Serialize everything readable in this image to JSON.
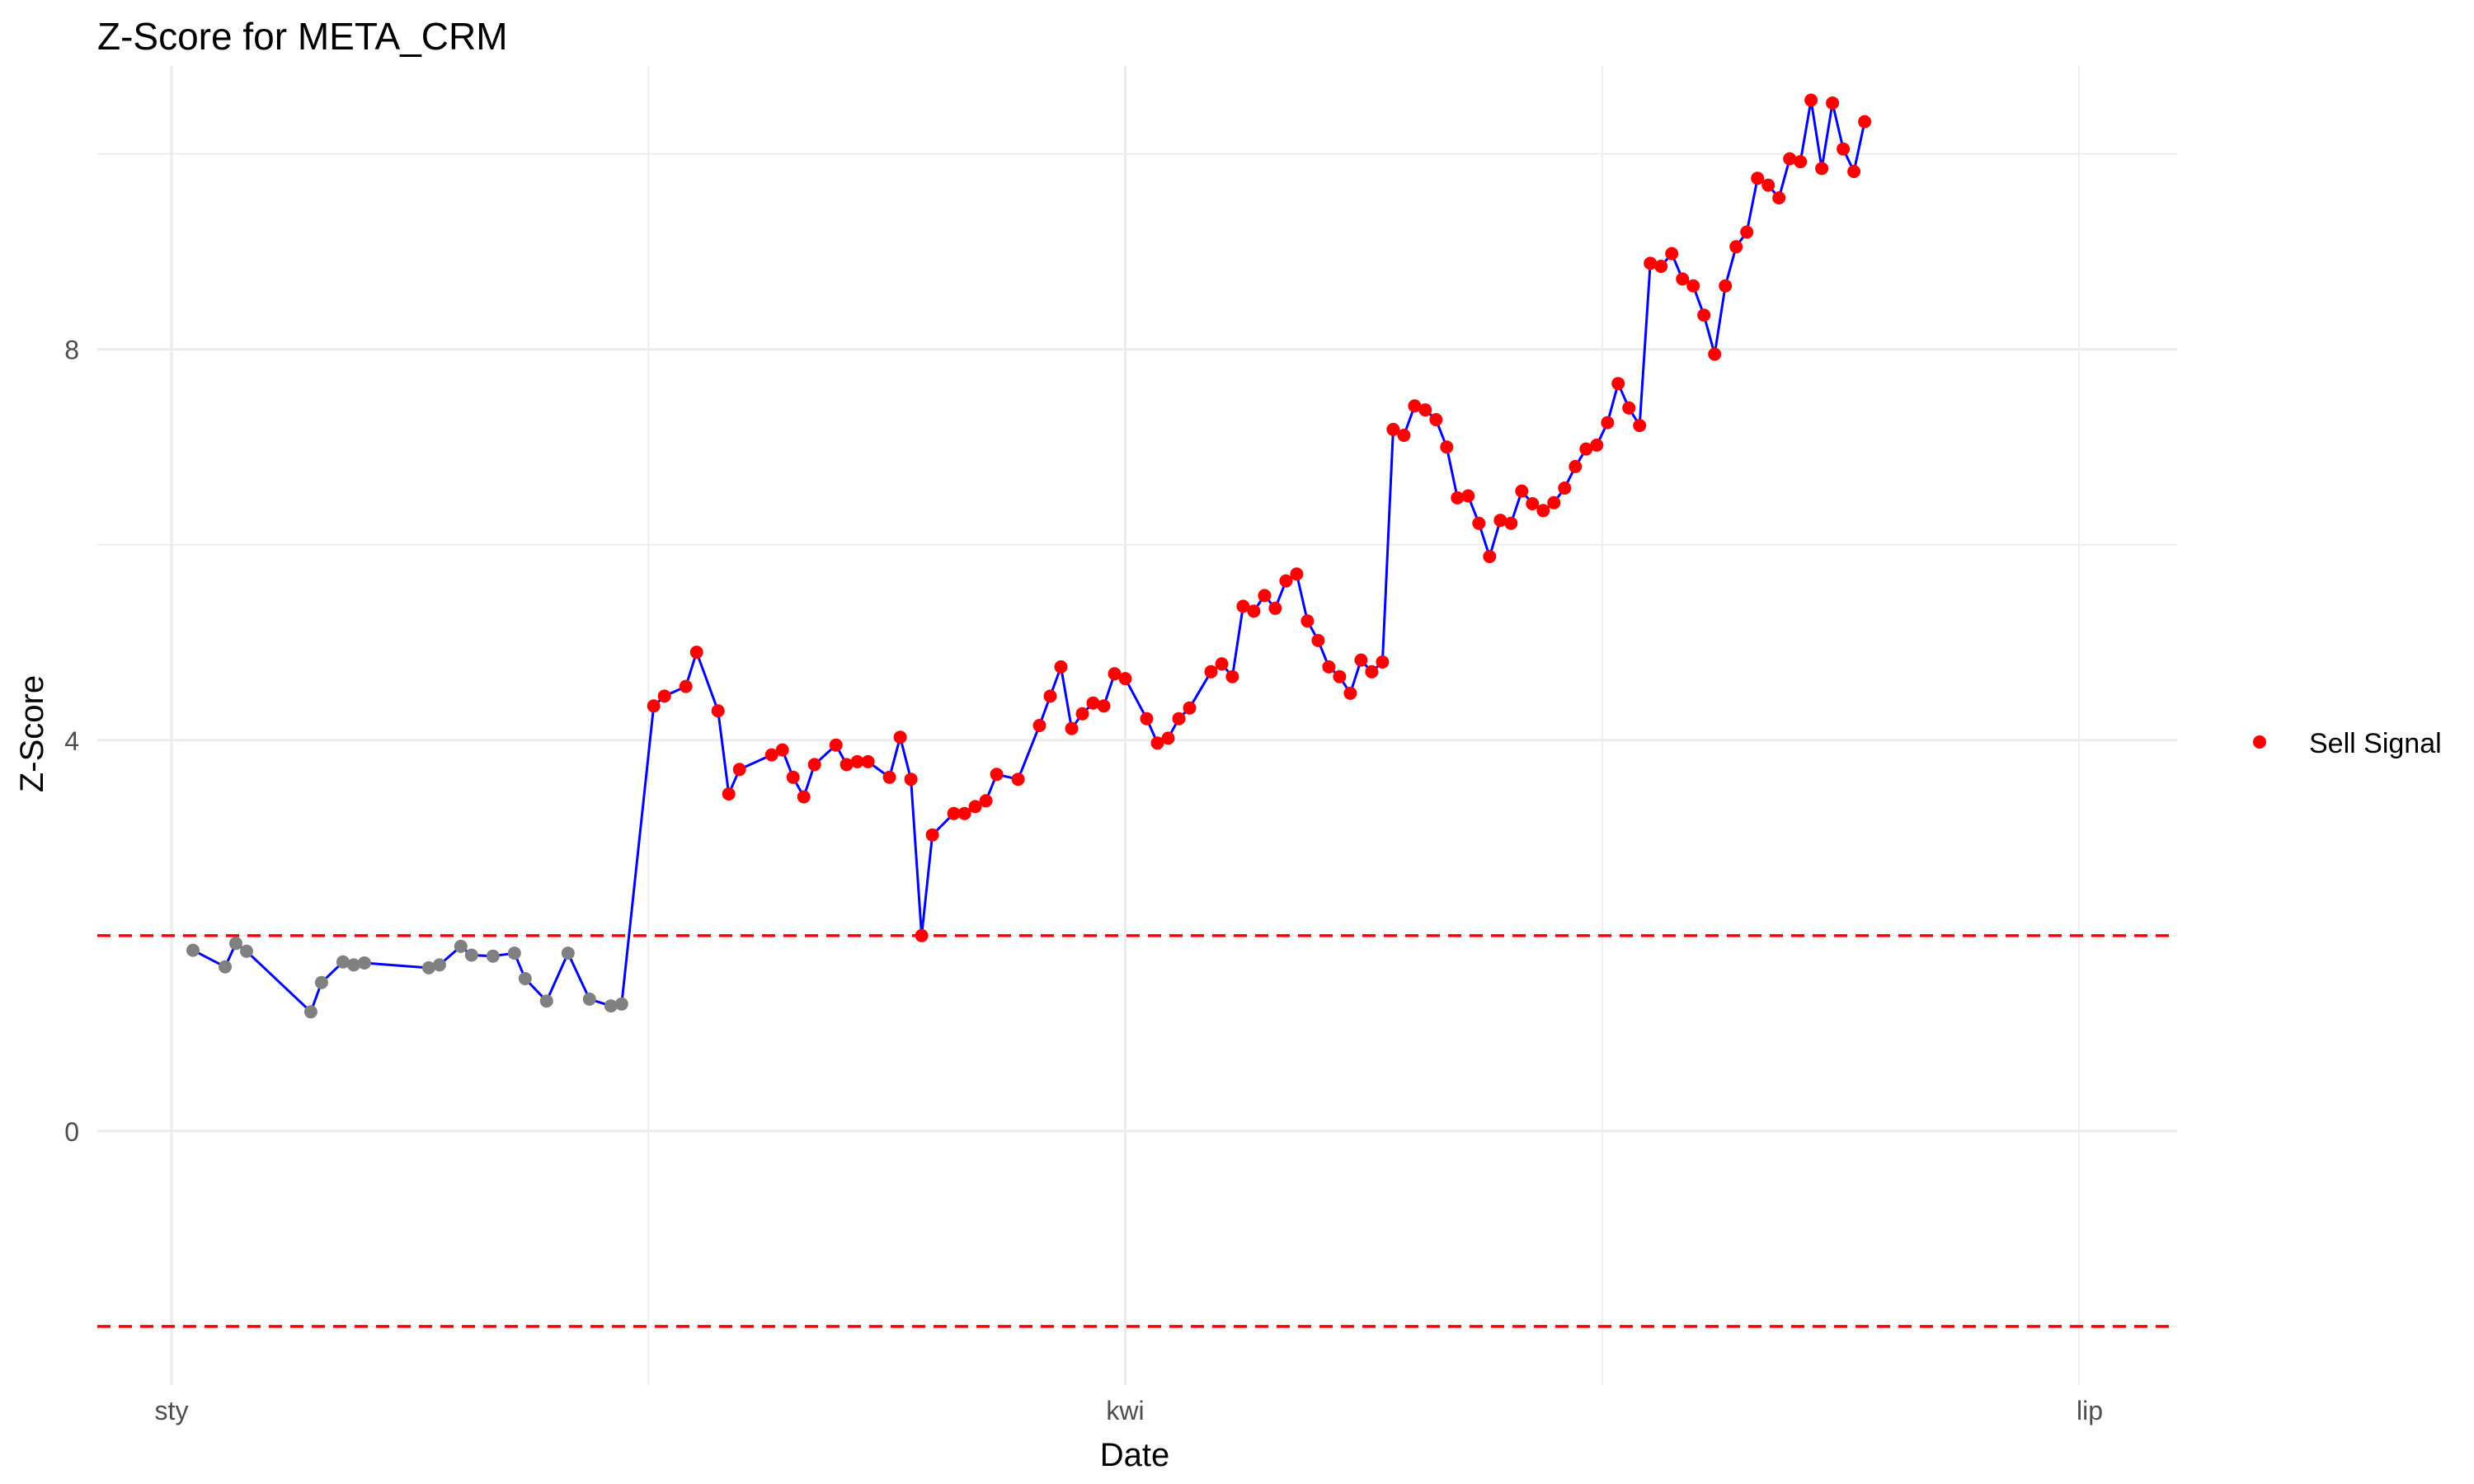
{
  "chart_data": {
    "type": "line",
    "title": "Z-Score for META_CRM",
    "xlabel": "Date",
    "ylabel": "Z-Score",
    "x_tick_labels": [
      "sty",
      "kwi",
      "lip"
    ],
    "y_ticks": [
      0,
      4,
      8
    ],
    "ylim": [
      -2.6,
      10.9
    ],
    "x_index_range": [
      1,
      180
    ],
    "x_index_ticks": [
      1,
      90,
      180
    ],
    "thresholds": [
      2,
      -2
    ],
    "grid": true,
    "legend": {
      "position": "right",
      "entries": [
        "Sell Signal"
      ]
    },
    "colors": {
      "line": "#0000ff",
      "sell": "#ff0000",
      "neutral": "#808080",
      "threshold": "#ff0000",
      "grid": "#ebebeb"
    },
    "series": [
      {
        "values": [
          1.85,
          1.68,
          1.92,
          1.84,
          1.22,
          1.52,
          1.73,
          1.7,
          1.72,
          1.67,
          1.7,
          1.89,
          1.8,
          1.79,
          1.82,
          1.56,
          1.33,
          1.82,
          1.35,
          1.28,
          1.3,
          4.35,
          4.45,
          4.55,
          4.9,
          4.3,
          3.45,
          3.7,
          3.85,
          3.9,
          3.62,
          3.42,
          3.75,
          3.95,
          3.75,
          3.78,
          3.78,
          3.62,
          4.03,
          3.6,
          2.0,
          3.03,
          3.25,
          3.25,
          3.32,
          3.38,
          3.65,
          3.6,
          4.15,
          4.45,
          4.75,
          4.12,
          4.27,
          4.38,
          4.35,
          4.68,
          4.63,
          4.22,
          3.97,
          4.02,
          4.22,
          4.33,
          4.7,
          4.78,
          4.65,
          5.37,
          5.32,
          5.48,
          5.35,
          5.63,
          5.7,
          5.22,
          5.02,
          4.75,
          4.65,
          4.48,
          4.82,
          4.7,
          4.8,
          7.18,
          7.12,
          7.42,
          7.38,
          7.28,
          7.0,
          6.48,
          6.5,
          6.22,
          5.88,
          6.25,
          6.22,
          6.55,
          6.42,
          6.35,
          6.43,
          6.58,
          6.8,
          6.98,
          7.02,
          7.25,
          7.65,
          7.4,
          7.22,
          8.88,
          8.85,
          8.98,
          8.72,
          8.65,
          8.35,
          7.95,
          8.65,
          9.05,
          9.2,
          9.75,
          9.68,
          9.55,
          9.95,
          9.92,
          10.55,
          9.85,
          10.52,
          10.05,
          9.82,
          10.33
        ],
        "point_colors": [
          "gray",
          "gray",
          "gray",
          "gray",
          "gray",
          "gray",
          "gray",
          "gray",
          "gray",
          "gray",
          "gray",
          "gray",
          "gray",
          "gray",
          "gray",
          "gray",
          "gray",
          "gray",
          "gray",
          "gray",
          "gray",
          "red",
          "red",
          "red",
          "red",
          "red",
          "red",
          "red",
          "red",
          "red",
          "red",
          "red",
          "red",
          "red",
          "red",
          "red",
          "red",
          "red",
          "red",
          "red",
          "red",
          "red",
          "red",
          "red",
          "red",
          "red",
          "red",
          "red",
          "red",
          "red",
          "red",
          "red",
          "red",
          "red",
          "red",
          "red",
          "red",
          "red",
          "red",
          "red",
          "red",
          "red",
          "red",
          "red",
          "red",
          "red",
          "red",
          "red",
          "red",
          "red",
          "red",
          "red",
          "red",
          "red",
          "red",
          "red",
          "red",
          "red",
          "red",
          "red",
          "red",
          "red",
          "red",
          "red",
          "red",
          "red",
          "red",
          "red",
          "red",
          "red",
          "red",
          "red",
          "red",
          "red",
          "red",
          "red",
          "red",
          "red",
          "red",
          "red",
          "red",
          "red",
          "red",
          "red",
          "red",
          "red",
          "red",
          "red",
          "red",
          "red",
          "red",
          "red",
          "red",
          "red",
          "red",
          "red",
          "red",
          "red",
          "red",
          "red",
          "red",
          "red",
          "red",
          "red"
        ],
        "x_index": [
          3,
          6,
          7,
          8,
          14,
          15,
          17,
          18,
          19,
          25,
          26,
          28,
          29,
          31,
          33,
          34,
          36,
          38,
          40,
          42,
          43,
          46,
          47,
          49,
          50,
          52,
          53,
          54,
          57,
          58,
          59,
          60,
          61,
          63,
          64,
          65,
          66,
          68,
          69,
          70,
          71,
          72,
          74,
          75,
          76,
          77,
          78,
          80,
          82,
          83,
          84,
          85,
          86,
          87,
          88,
          89,
          90,
          92,
          93,
          94,
          95,
          96,
          98,
          99,
          100,
          101,
          102,
          103,
          104,
          105,
          106,
          107,
          108,
          109,
          110,
          111,
          112,
          113,
          114,
          115,
          116,
          117,
          118,
          119,
          120,
          121,
          122,
          123,
          124,
          125,
          126,
          127,
          128,
          129,
          130,
          131,
          132,
          133,
          134,
          135,
          136,
          137,
          138,
          139,
          140,
          141,
          142,
          143,
          144,
          145,
          146,
          147,
          148,
          149,
          150,
          151,
          152,
          153,
          154,
          155,
          156,
          157,
          158,
          159
        ]
      }
    ]
  }
}
